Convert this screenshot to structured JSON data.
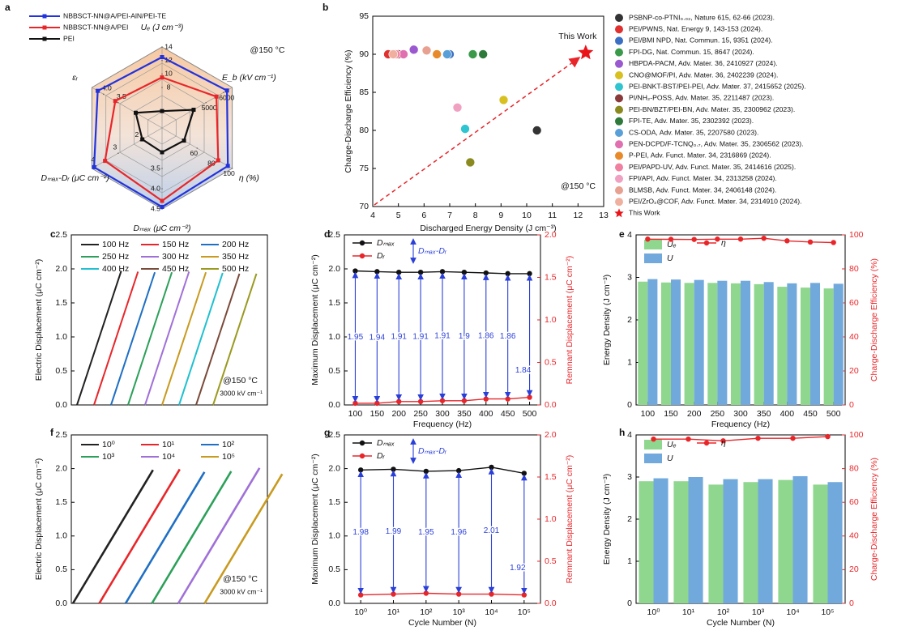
{
  "chart_data": [
    {
      "type": "radar",
      "label": "a",
      "annotations": [
        "@150 °C"
      ],
      "axes": [
        {
          "label": "Uₑ (J cm⁻³)",
          "lim": [
            2,
            14
          ],
          "ticks": [
            8,
            10,
            12,
            14
          ]
        },
        {
          "label": "E_b (kV cm⁻¹)",
          "lim": [
            2500,
            6500
          ],
          "ticks": [
            5000,
            6000
          ]
        },
        {
          "label": "η (%)",
          "lim": [
            20,
            100
          ],
          "ticks": [
            60,
            80,
            100
          ]
        },
        {
          "label": "Dₘₐₓ (μC cm⁻²)",
          "lim": [
            2.5,
            4.5
          ],
          "ticks": [
            3.5,
            {
              "value": 4,
              "label": "4.0"
            },
            4.5
          ]
        },
        {
          "label": "Dₘₐₓ-Dᵣ (μC cm⁻²)",
          "lim": [
            1,
            4.2
          ],
          "ticks": [
            2,
            3,
            4
          ]
        },
        {
          "label": "εᵣ",
          "lim": [
            2,
            4.4
          ],
          "ticks": [
            3.5,
            {
              "value": 4,
              "label": "4.0"
            }
          ]
        }
      ],
      "series": [
        {
          "name": "NBBSCT-NN@A/PEI-AlN/PEI-TE",
          "color": "#2233dd",
          "values": [
            12.5,
            6200,
            95,
            4.45,
            4.1,
            4.2
          ]
        },
        {
          "name": "NBBSCT-NN@A/PEI",
          "color": "#e8262a",
          "values": [
            9.5,
            5600,
            84,
            4.3,
            3.6,
            3.6
          ]
        },
        {
          "name": "PEI",
          "color": "#111111",
          "values": [
            4.5,
            4300,
            45,
            3.1,
            1.9,
            2.9
          ]
        }
      ]
    },
    {
      "type": "scatter",
      "label": "b",
      "x_label": "Discharged Energy Density (J cm⁻³)",
      "y_label": "Charge-Discharge Efficiency (%)",
      "annotations": [
        "This Work",
        "@150 °C"
      ],
      "xlim": [
        4,
        13
      ],
      "xticks": [
        4,
        5,
        6,
        7,
        8,
        9,
        10,
        11,
        12,
        13
      ],
      "ylim": [
        70,
        95
      ],
      "yticks": [
        70,
        75,
        80,
        85,
        90,
        95
      ],
      "series": [
        {
          "name": "PSBNP-co-PTNI₀.₀₂, Nature 615, 62-66 (2023).",
          "color": "#333333",
          "x": [
            10.4
          ],
          "values": [
            80
          ]
        },
        {
          "name": "PEI/PWNS, Nat. Energy 9, 143-153 (2024).",
          "color": "#e03030",
          "x": [
            4.6
          ],
          "values": [
            90
          ]
        },
        {
          "name": "PEI/BMI NPD, Nat. Commun. 15, 9351 (2024).",
          "color": "#3a6fc4",
          "x": [
            7.0
          ],
          "values": [
            90
          ]
        },
        {
          "name": "FPI-DG, Nat. Commun. 15, 8647 (2024).",
          "color": "#3a9a4a",
          "x": [
            7.9
          ],
          "values": [
            90
          ]
        },
        {
          "name": "HBPDA-PACM, Adv. Mater. 36, 2410927 (2024).",
          "color": "#9b59d0",
          "x": [
            5.6
          ],
          "values": [
            90.6
          ]
        },
        {
          "name": "CNO@MOF/PI, Adv. Mater. 36, 2402239 (2024).",
          "color": "#d8c020",
          "x": [
            9.1
          ],
          "values": [
            84
          ]
        },
        {
          "name": "PEI-BNKT-BST/PEI-PEI, Adv. Mater. 37, 2415652 (2025).",
          "color": "#2ec4d0",
          "x": [
            7.6
          ],
          "values": [
            80.2
          ]
        },
        {
          "name": "PI/NH₂-POSS, Adv. Mater. 35, 2211487 (2023).",
          "color": "#8b3a3a",
          "x": [
            5.0
          ],
          "values": [
            90
          ]
        },
        {
          "name": "PEI-BN/BZT/PEI-BN, Adv. Mater. 35, 2300962 (2023).",
          "color": "#8a8a20",
          "x": [
            7.8
          ],
          "values": [
            75.8
          ]
        },
        {
          "name": "FPI-TE, Adv. Mater. 35, 2302392 (2023).",
          "color": "#2e7a3a",
          "x": [
            8.3
          ],
          "values": [
            90
          ]
        },
        {
          "name": "CS-ODA, Adv. Mater. 35, 2207580 (2023).",
          "color": "#5aa0d8",
          "x": [
            6.9
          ],
          "values": [
            90
          ]
        },
        {
          "name": "PEN-DCPD/F-TCNQ₀.₇, Adv. Mater. 35, 2306562 (2023).",
          "color": "#e070b0",
          "x": [
            5.2
          ],
          "values": [
            90
          ]
        },
        {
          "name": "P-PEI, Adv. Funct. Mater. 34, 2316869 (2024).",
          "color": "#e88a2a",
          "x": [
            6.5
          ],
          "values": [
            90
          ]
        },
        {
          "name": "PEI/PAPD-UV, Adv. Funct. Mater. 35, 2414616 (2025).",
          "color": "#f080a0",
          "x": [
            4.9
          ],
          "values": [
            90
          ]
        },
        {
          "name": "FPI/API, Adv. Funct. Mater. 34, 2313258 (2024).",
          "color": "#f0a0c0",
          "x": [
            7.3
          ],
          "values": [
            83
          ]
        },
        {
          "name": "BLMSB, Adv. Funct. Mater. 34, 2406148 (2024).",
          "color": "#e8a090",
          "x": [
            6.1
          ],
          "values": [
            90.5
          ]
        },
        {
          "name": "PEI/ZrO₂@COF, Adv. Funct. Mater. 34, 2314910 (2024).",
          "color": "#f0b0a0",
          "x": [
            4.8
          ],
          "values": [
            90
          ]
        },
        {
          "name": "This Work",
          "color": "#e8141a",
          "marker": "star",
          "x": [
            12.3
          ],
          "values": [
            90.2
          ]
        }
      ]
    },
    {
      "type": "line",
      "label": "c",
      "y_label": "Electric Displacement (μC cm⁻²)",
      "annotations": [
        "@150 °C",
        "3000 kV cm⁻¹"
      ],
      "ylim": [
        0,
        2.5
      ],
      "yticks": [
        {
          "value": 0,
          "label": "0.0"
        },
        0.5,
        {
          "value": 1,
          "label": "1.0"
        },
        1.5,
        {
          "value": 2,
          "label": "2.0"
        },
        2.5
      ],
      "series": [
        {
          "name": "100 Hz",
          "color": "#222222",
          "values": [
            0,
            1.97
          ]
        },
        {
          "name": "150 Hz",
          "color": "#e8262a",
          "values": [
            0,
            1.96
          ]
        },
        {
          "name": "200 Hz",
          "color": "#1f6fc4",
          "values": [
            0,
            1.95
          ]
        },
        {
          "name": "250 Hz",
          "color": "#2ca05a",
          "values": [
            0,
            1.95
          ]
        },
        {
          "name": "300 Hz",
          "color": "#a070d8",
          "values": [
            0,
            1.96
          ]
        },
        {
          "name": "350 Hz",
          "color": "#c89a20",
          "values": [
            0,
            1.95
          ]
        },
        {
          "name": "400 Hz",
          "color": "#20c0d0",
          "values": [
            0,
            1.94
          ]
        },
        {
          "name": "450 Hz",
          "color": "#7a4a3a",
          "values": [
            0,
            1.93
          ]
        },
        {
          "name": "500 Hz",
          "color": "#9a9a20",
          "values": [
            0,
            1.93
          ]
        }
      ]
    },
    {
      "type": "combo",
      "label": "d",
      "x_label": "Frequency (Hz)",
      "y_label": "Maximum Displacement (μC cm⁻²)",
      "y2_label": "Remnant Displacement (μC cm⁻²)",
      "categories": [
        "100",
        "150",
        "200",
        "250",
        "300",
        "350",
        "400",
        "450",
        "500"
      ],
      "ylim": [
        0,
        2.5
      ],
      "yticks": [
        {
          "value": 0,
          "label": "0.0"
        },
        0.5,
        {
          "value": 1,
          "label": "1.0"
        },
        1.5,
        {
          "value": 2,
          "label": "2.0"
        },
        2.5
      ],
      "y2lim": [
        0,
        2
      ],
      "y2ticks": [
        {
          "value": 0,
          "label": "0.0"
        },
        0.5,
        {
          "value": 1,
          "label": "1.0"
        },
        1.5,
        {
          "value": 2,
          "label": "2.0"
        }
      ],
      "series": [
        {
          "name": "Dₘₐₓ",
          "kind": "line",
          "color": "#111111",
          "values": [
            1.97,
            1.96,
            1.95,
            1.95,
            1.96,
            1.95,
            1.94,
            1.93,
            1.93
          ]
        },
        {
          "name": "Dᵣ",
          "kind": "line",
          "axis": "y2",
          "color": "#e8262a",
          "values": [
            0.02,
            0.02,
            0.04,
            0.04,
            0.05,
            0.05,
            0.07,
            0.07,
            0.09
          ]
        },
        {
          "name": "Dₘₐₓ-Dᵣ",
          "kind": "arrow",
          "color": "#2a3fd8",
          "values": [
            1.95,
            1.94,
            1.91,
            1.91,
            1.91,
            1.9,
            1.86,
            1.86,
            1.84
          ]
        }
      ]
    },
    {
      "type": "combo",
      "label": "e",
      "x_label": "Frequency (Hz)",
      "y_label": "Energy Density (J cm⁻³)",
      "y2_label": "Charge-Discharge Efficiency (%)",
      "categories": [
        "100",
        "150",
        "200",
        "250",
        "300",
        "350",
        "400",
        "450",
        "500"
      ],
      "ylim": [
        0,
        4
      ],
      "yticks": [
        0,
        1,
        2,
        3,
        4
      ],
      "y2lim": [
        0,
        100
      ],
      "y2ticks": [
        0,
        20,
        40,
        60,
        80,
        100
      ],
      "series": [
        {
          "name": "Uₑ",
          "kind": "bar",
          "color": "#8fd68f",
          "values": [
            2.9,
            2.88,
            2.87,
            2.87,
            2.86,
            2.84,
            2.78,
            2.76,
            2.74
          ]
        },
        {
          "name": "U",
          "kind": "bar",
          "color": "#72a9dc",
          "values": [
            2.96,
            2.95,
            2.94,
            2.92,
            2.92,
            2.89,
            2.86,
            2.87,
            2.85
          ]
        },
        {
          "name": "η",
          "kind": "line",
          "axis": "y2",
          "color": "#e8262a",
          "values": [
            97.5,
            97.4,
            97.3,
            97.5,
            97.5,
            98,
            96.5,
            95.8,
            95.5
          ]
        }
      ]
    },
    {
      "type": "line",
      "label": "f",
      "y_label": "Electric Displacement (μC cm⁻²)",
      "annotations": [
        "@150 °C",
        "3000 kV cm⁻¹"
      ],
      "ylim": [
        0,
        2.5
      ],
      "yticks": [
        {
          "value": 0,
          "label": "0.0"
        },
        0.5,
        {
          "value": 1,
          "label": "1.0"
        },
        1.5,
        {
          "value": 2,
          "label": "2.0"
        },
        2.5
      ],
      "series": [
        {
          "name": "10⁰",
          "color": "#222222",
          "values": [
            0,
            1.98
          ]
        },
        {
          "name": "10¹",
          "color": "#e8262a",
          "values": [
            0,
            1.99
          ]
        },
        {
          "name": "10²",
          "color": "#1f6fc4",
          "values": [
            0,
            1.95
          ]
        },
        {
          "name": "10³",
          "color": "#2ca05a",
          "values": [
            0,
            1.96
          ]
        },
        {
          "name": "10⁴",
          "color": "#a070d8",
          "values": [
            0,
            2.01
          ]
        },
        {
          "name": "10⁵",
          "color": "#c89a20",
          "values": [
            0,
            1.92
          ]
        }
      ]
    },
    {
      "type": "combo",
      "label": "g",
      "x_label": "Cycle Number (N)",
      "y_label": "Maximum Displacement (μC cm⁻²)",
      "y2_label": "Remnant Displacement (μC cm⁻²)",
      "categories": [
        "10⁰",
        "10¹",
        "10²",
        "10³",
        "10⁴",
        "10⁵"
      ],
      "ylim": [
        0,
        2.5
      ],
      "yticks": [
        {
          "value": 0,
          "label": "0.0"
        },
        0.5,
        {
          "value": 1,
          "label": "1.0"
        },
        1.5,
        {
          "value": 2,
          "label": "2.0"
        },
        2.5
      ],
      "y2lim": [
        0,
        2
      ],
      "y2ticks": [
        {
          "value": 0,
          "label": "0.0"
        },
        0.5,
        {
          "value": 1,
          "label": "1.0"
        },
        1.5,
        {
          "value": 2,
          "label": "2.0"
        }
      ],
      "series": [
        {
          "name": "Dₘₐₓ",
          "kind": "line",
          "color": "#111111",
          "values": [
            1.98,
            1.99,
            1.96,
            1.97,
            2.02,
            1.93
          ]
        },
        {
          "name": "Dᵣ",
          "kind": "line",
          "axis": "y2",
          "color": "#e8262a",
          "values": [
            0.1,
            0.11,
            0.12,
            0.11,
            0.11,
            0.1
          ]
        },
        {
          "name": "Dₘₐₓ-Dᵣ",
          "kind": "arrow",
          "color": "#2a3fd8",
          "values": [
            1.98,
            1.99,
            1.95,
            1.96,
            2.01,
            1.92
          ]
        }
      ]
    },
    {
      "type": "combo",
      "label": "h",
      "x_label": "Cycle Number (N)",
      "y_label": "Energy Density (J cm⁻³)",
      "y2_label": "Charge-Discharge Efficiency (%)",
      "categories": [
        "10⁰",
        "10¹",
        "10²",
        "10³",
        "10⁴",
        "10⁵"
      ],
      "ylim": [
        0,
        4
      ],
      "yticks": [
        0,
        1,
        2,
        3,
        4
      ],
      "y2lim": [
        0,
        100
      ],
      "y2ticks": [
        0,
        20,
        40,
        60,
        80,
        100
      ],
      "series": [
        {
          "name": "Uₑ",
          "kind": "bar",
          "color": "#8fd68f",
          "values": [
            2.9,
            2.9,
            2.82,
            2.88,
            2.93,
            2.82
          ]
        },
        {
          "name": "U",
          "kind": "bar",
          "color": "#72a9dc",
          "values": [
            2.97,
            3.0,
            2.95,
            2.95,
            3.02,
            2.88
          ]
        },
        {
          "name": "η",
          "kind": "line",
          "axis": "y2",
          "color": "#e8262a",
          "values": [
            97.5,
            97.5,
            96.5,
            98,
            98,
            99
          ]
        }
      ]
    }
  ]
}
